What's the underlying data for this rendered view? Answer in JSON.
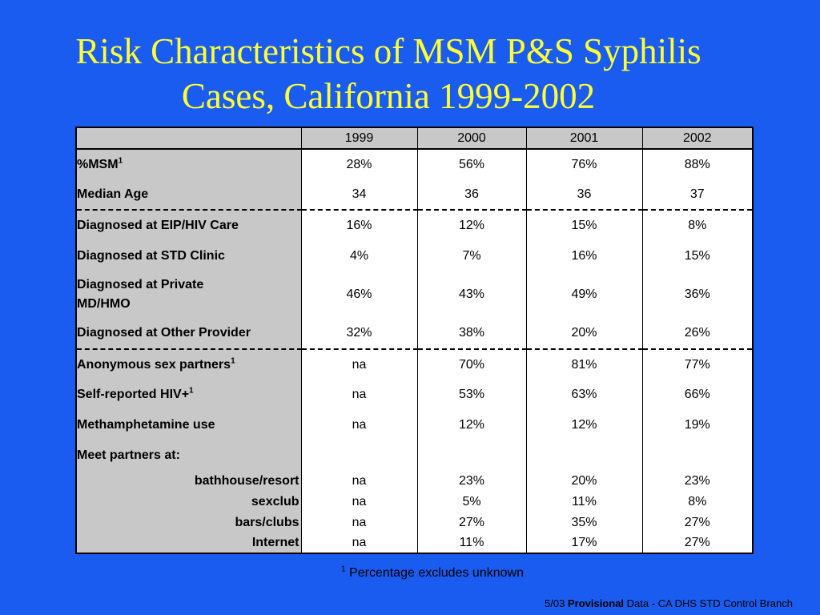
{
  "title": {
    "line1": "Risk Characteristics of MSM P&S Syphilis",
    "line2": "Cases, California 1999-2002"
  },
  "table": {
    "columns": [
      "1999",
      "2000",
      "2001",
      "2002"
    ],
    "rows": [
      {
        "label": "%MSM",
        "sup": "1",
        "values": [
          "28%",
          "56%",
          "76%",
          "88%"
        ]
      },
      {
        "label": "Median Age",
        "values": [
          "34",
          "36",
          "36",
          "37"
        ]
      },
      {
        "label": "Diagnosed at EIP/HIV Care",
        "values": [
          "16%",
          "12%",
          "15%",
          "8%"
        ]
      },
      {
        "label": "Diagnosed at STD Clinic",
        "values": [
          "4%",
          "7%",
          "16%",
          "15%"
        ]
      },
      {
        "label_line1": "Diagnosed at Private",
        "label_line2": "MD/HMO",
        "values": [
          "46%",
          "43%",
          "49%",
          "36%"
        ]
      },
      {
        "label": "Diagnosed at Other Provider",
        "values": [
          "32%",
          "38%",
          "20%",
          "26%"
        ]
      },
      {
        "label": "Anonymous sex partners",
        "sup": "1",
        "values": [
          "na",
          "70%",
          "81%",
          "77%"
        ]
      },
      {
        "label": "Self-reported HIV+",
        "sup": "1",
        "values": [
          "na",
          "53%",
          "63%",
          "66%"
        ]
      },
      {
        "label": "Methamphetamine use",
        "values": [
          "na",
          "12%",
          "12%",
          "19%"
        ]
      },
      {
        "label": "Meet partners at:"
      },
      {
        "label": "bathhouse/resort",
        "values": [
          "na",
          "23%",
          "20%",
          "23%"
        ]
      },
      {
        "label": "sexclub",
        "values": [
          "na",
          "5%",
          "11%",
          "8%"
        ]
      },
      {
        "label": "bars/clubs",
        "values": [
          "na",
          "27%",
          "35%",
          "27%"
        ]
      },
      {
        "label": "Internet",
        "values": [
          "na",
          "11%",
          "17%",
          "27%"
        ]
      }
    ]
  },
  "footnote": {
    "marker": "1",
    "text": " Percentage excludes unknown"
  },
  "source": {
    "prefix": "5/03 ",
    "bold": "Provisional",
    "suffix": " Data - CA DHS STD Control Branch"
  },
  "colors": {
    "background": "#1a5cf0",
    "title": "#ffff33",
    "label_cell": "#c8c8c8"
  }
}
